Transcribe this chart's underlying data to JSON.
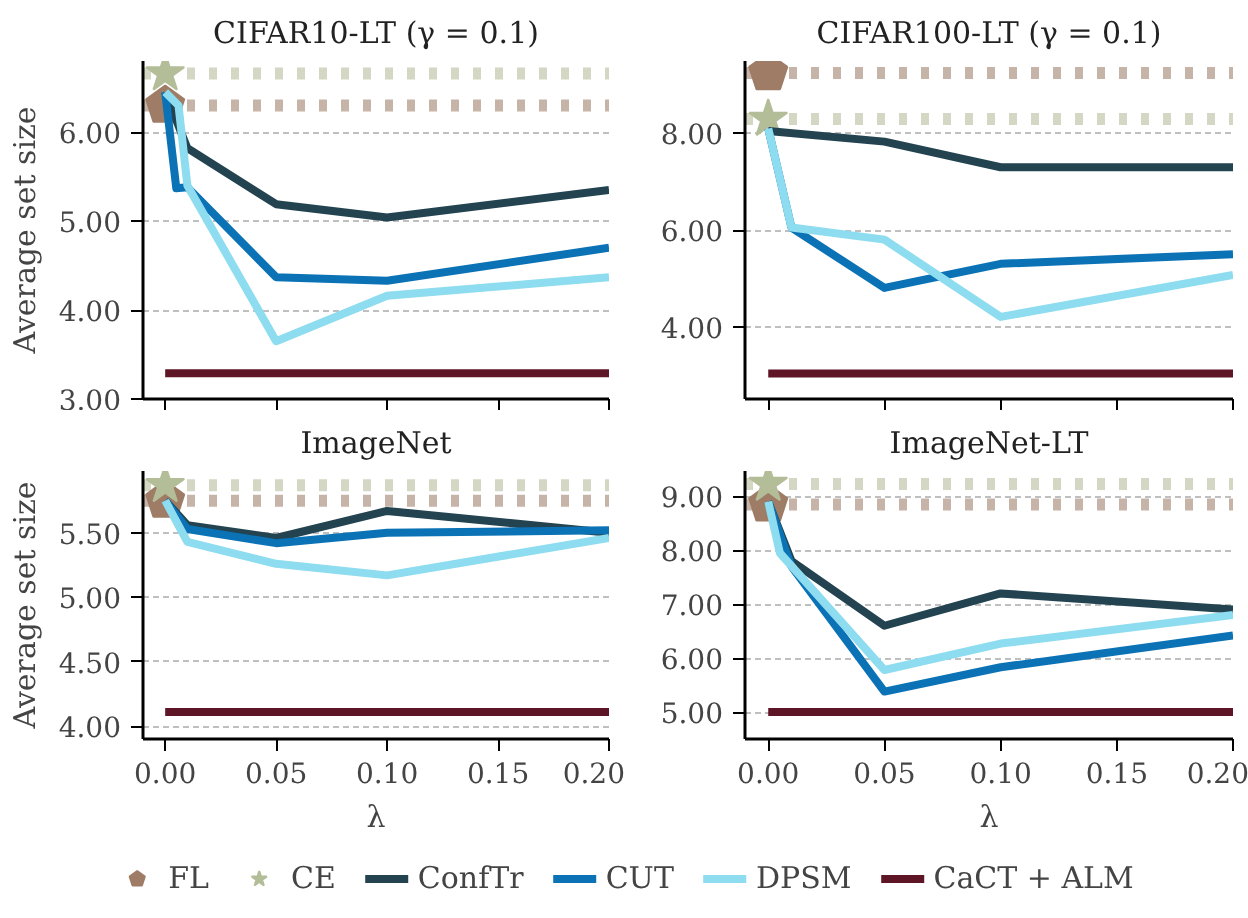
{
  "chart_data": [
    {
      "type": "line",
      "title": "CIFAR10-LT (γ = 0.1)",
      "ylabel": "Average set size",
      "grid": "y",
      "legend": "bottom",
      "tick_labels": "y",
      "xlim": [
        -0.01,
        0.2
      ],
      "xticks": [
        0,
        0.05,
        0.1,
        0.15,
        0.2
      ],
      "ylim": [
        3.0,
        6.8
      ],
      "yticks": [
        {
          "value": 3,
          "label": "3.00"
        },
        {
          "value": 4,
          "label": "4.00"
        },
        {
          "value": 5,
          "label": "5.00"
        },
        {
          "value": 6,
          "label": "6.00"
        }
      ],
      "series": [
        {
          "name": "FL",
          "type": "scatter",
          "color": "#9e7c66",
          "x": [
            0
          ],
          "values": [
            6.3
          ]
        },
        {
          "name": "CE",
          "type": "scatter",
          "marker": "star",
          "color": "#b3bd98",
          "x": [
            0
          ],
          "values": [
            6.66
          ]
        },
        {
          "name": "ConfTr",
          "color": "#22434f",
          "x": [
            0,
            0.01,
            0.05,
            0.1,
            0.2
          ],
          "values": [
            6.45,
            5.82,
            5.19,
            5.04,
            5.35
          ]
        },
        {
          "name": "CUT",
          "color": "#0a72b5",
          "x": [
            0,
            0.005,
            0.01,
            0.05,
            0.1,
            0.2
          ],
          "values": [
            6.45,
            5.37,
            5.38,
            4.37,
            4.33,
            4.7
          ]
        },
        {
          "name": "DPSM",
          "color": "#8ddcef",
          "x": [
            0,
            0.006,
            0.01,
            0.05,
            0.1,
            0.2
          ],
          "values": [
            6.45,
            6.3,
            5.4,
            3.65,
            4.16,
            4.37
          ]
        },
        {
          "name": "CaCT + ALM",
          "color": "#5e1525",
          "x": [
            0,
            0.2
          ],
          "values": [
            3.29,
            3.29
          ]
        }
      ],
      "ref_lines": [
        {
          "axis": "y",
          "value": 6.3,
          "color": "#c6b4a8",
          "line_style": "dotted"
        },
        {
          "axis": "y",
          "value": 6.66,
          "color": "#d3d7c3",
          "line_style": "dotted"
        }
      ]
    },
    {
      "type": "line",
      "title": "CIFAR100-LT (γ = 0.1)",
      "grid": "y",
      "tick_labels": "y",
      "xlim": [
        -0.01,
        0.2
      ],
      "xticks": [
        0,
        0.05,
        0.1,
        0.15,
        0.2
      ],
      "ylim": [
        2.5,
        9.5
      ],
      "yticks": [
        {
          "value": 4,
          "label": "4.00"
        },
        {
          "value": 6,
          "label": "6.00"
        },
        {
          "value": 8,
          "label": "8.00"
        }
      ],
      "series": [
        {
          "type": "scatter",
          "color": "#9e7c66",
          "x": [
            0
          ],
          "values": [
            9.25
          ]
        },
        {
          "type": "scatter",
          "marker": "star",
          "color": "#b3bd98",
          "x": [
            0
          ],
          "values": [
            8.3
          ]
        },
        {
          "color": "#22434f",
          "x": [
            0,
            0.05,
            0.1,
            0.2
          ],
          "values": [
            8.05,
            7.83,
            7.3,
            7.3
          ]
        },
        {
          "color": "#0a72b5",
          "x": [
            0,
            0.01,
            0.05,
            0.1,
            0.2
          ],
          "values": [
            8.1,
            6.05,
            4.8,
            5.3,
            5.5
          ]
        },
        {
          "color": "#8ddcef",
          "x": [
            0,
            0.01,
            0.05,
            0.1,
            0.2
          ],
          "values": [
            8.1,
            6.05,
            5.8,
            4.2,
            5.07
          ]
        },
        {
          "color": "#5e1525",
          "x": [
            0,
            0.2
          ],
          "values": [
            3.03,
            3.03
          ]
        }
      ],
      "ref_lines": [
        {
          "axis": "y",
          "value": 9.25,
          "color": "#c6b4a8",
          "line_style": "dotted"
        },
        {
          "axis": "y",
          "value": 8.3,
          "color": "#d3d7c3",
          "line_style": "dotted"
        }
      ]
    },
    {
      "type": "line",
      "title": "ImageNet",
      "ylabel": "Average set size",
      "xlabel": "λ",
      "grid": "y",
      "xlim": [
        -0.01,
        0.2
      ],
      "xticks": [
        {
          "value": 0,
          "label": "0.00"
        },
        {
          "value": 0.05,
          "label": "0.05"
        },
        {
          "value": 0.1,
          "label": "0.10"
        },
        {
          "value": 0.15,
          "label": "0.15"
        },
        {
          "value": 0.2,
          "label": "0.20"
        }
      ],
      "ylim": [
        3.9,
        5.98
      ],
      "yticks": [
        {
          "value": 4,
          "label": "4.00"
        },
        {
          "value": 4.5,
          "label": "4.50"
        },
        {
          "value": 5,
          "label": "5.00"
        },
        {
          "value": 5.5,
          "label": "5.50"
        }
      ],
      "series": [
        {
          "type": "scatter",
          "color": "#9e7c66",
          "x": [
            0
          ],
          "values": [
            5.75
          ]
        },
        {
          "type": "scatter",
          "marker": "star",
          "color": "#b3bd98",
          "x": [
            0
          ],
          "values": [
            5.87
          ]
        },
        {
          "color": "#22434f",
          "x": [
            0,
            0.01,
            0.05,
            0.1,
            0.2
          ],
          "values": [
            5.75,
            5.56,
            5.46,
            5.67,
            5.5
          ]
        },
        {
          "color": "#0a72b5",
          "x": [
            0,
            0.01,
            0.05,
            0.1,
            0.2
          ],
          "values": [
            5.75,
            5.53,
            5.42,
            5.5,
            5.52
          ]
        },
        {
          "color": "#8ddcef",
          "x": [
            0,
            0.01,
            0.05,
            0.1,
            0.2
          ],
          "values": [
            5.75,
            5.43,
            5.26,
            5.17,
            5.46
          ]
        },
        {
          "color": "#5e1525",
          "x": [
            0,
            0.2
          ],
          "values": [
            4.11,
            4.11
          ]
        }
      ],
      "ref_lines": [
        {
          "axis": "y",
          "value": 5.75,
          "color": "#c6b4a8",
          "line_style": "dotted"
        },
        {
          "axis": "y",
          "value": 5.87,
          "color": "#d3d7c3",
          "line_style": "dotted"
        }
      ]
    },
    {
      "type": "line",
      "title": "ImageNet-LT",
      "xlabel": "λ",
      "grid": "y",
      "xlim": [
        -0.01,
        0.2
      ],
      "xticks": [
        {
          "value": 0,
          "label": "0.00"
        },
        {
          "value": 0.05,
          "label": "0.05"
        },
        {
          "value": 0.1,
          "label": "0.10"
        },
        {
          "value": 0.15,
          "label": "0.15"
        },
        {
          "value": 0.2,
          "label": "0.20"
        }
      ],
      "ylim": [
        4.5,
        9.47
      ],
      "yticks": [
        {
          "value": 5,
          "label": "5.00"
        },
        {
          "value": 6,
          "label": "6.00"
        },
        {
          "value": 7,
          "label": "7.00"
        },
        {
          "value": 8,
          "label": "8.00"
        },
        {
          "value": 9,
          "label": "9.00"
        }
      ],
      "series": [
        {
          "type": "scatter",
          "color": "#9e7c66",
          "x": [
            0
          ],
          "values": [
            8.85
          ]
        },
        {
          "type": "scatter",
          "marker": "star",
          "color": "#b3bd98",
          "x": [
            0
          ],
          "values": [
            9.23
          ]
        },
        {
          "color": "#22434f",
          "x": [
            0,
            0.01,
            0.05,
            0.1,
            0.2
          ],
          "values": [
            8.9,
            7.8,
            6.6,
            7.2,
            6.9
          ]
        },
        {
          "color": "#0a72b5",
          "x": [
            0,
            0.01,
            0.05,
            0.1,
            0.2
          ],
          "values": [
            8.9,
            7.7,
            5.38,
            5.83,
            6.42
          ]
        },
        {
          "color": "#8ddcef",
          "x": [
            0,
            0.005,
            0.05,
            0.1,
            0.2
          ],
          "values": [
            8.9,
            7.95,
            5.78,
            6.27,
            6.8
          ]
        },
        {
          "color": "#5e1525",
          "x": [
            0,
            0.2
          ],
          "values": [
            5.0,
            5.0
          ]
        }
      ],
      "ref_lines": [
        {
          "axis": "y",
          "value": 8.85,
          "color": "#c6b4a8",
          "line_style": "dotted"
        },
        {
          "axis": "y",
          "value": 9.23,
          "color": "#d3d7c3",
          "line_style": "dotted"
        }
      ]
    }
  ]
}
